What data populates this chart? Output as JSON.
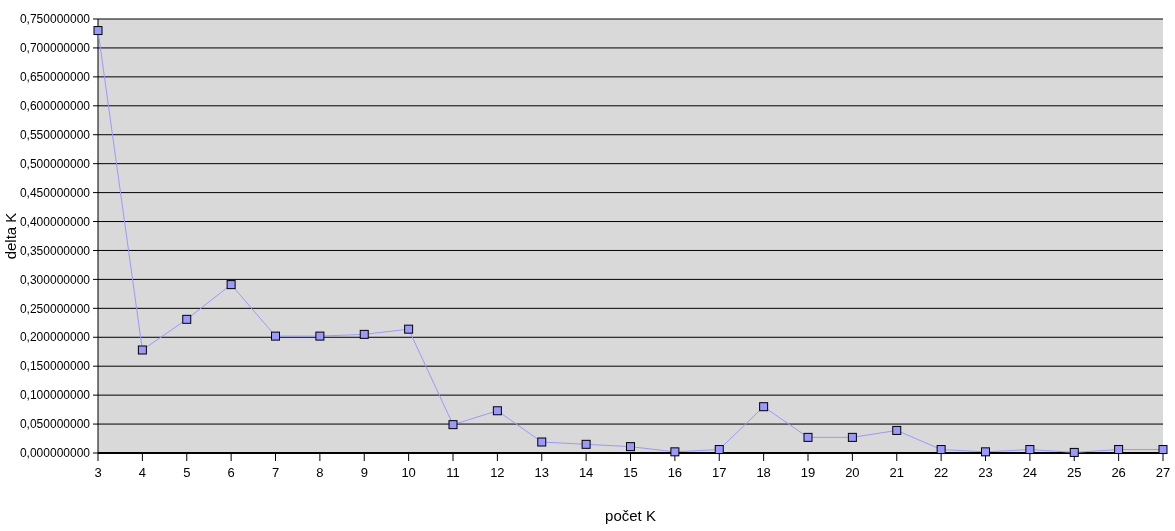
{
  "chart_data": {
    "type": "line",
    "xlabel": "počet K",
    "ylabel": "delta K",
    "categories": [
      "3",
      "4",
      "5",
      "6",
      "7",
      "8",
      "9",
      "10",
      "11",
      "12",
      "13",
      "14",
      "15",
      "16",
      "17",
      "18",
      "19",
      "20",
      "21",
      "22",
      "23",
      "24",
      "25",
      "26",
      "27"
    ],
    "series": [
      {
        "color": "#9999ff",
        "values": [
          0.73,
          0.178,
          0.231,
          0.291,
          0.202,
          0.202,
          0.205,
          0.214,
          0.049,
          0.073,
          0.019,
          0.015,
          0.011,
          0.002,
          0.006,
          0.08,
          0.027,
          0.027,
          0.039,
          0.006,
          0.002,
          0.006,
          0.001,
          0.006,
          0.006
        ]
      }
    ],
    "ylim": [
      0,
      0.75
    ],
    "yticks": [
      {
        "value": 0,
        "label": "0,000000000"
      },
      {
        "value": 0.05,
        "label": "0,050000000"
      },
      {
        "value": 0.1,
        "label": "0,100000000"
      },
      {
        "value": 0.15,
        "label": "0,150000000"
      },
      {
        "value": 0.2,
        "label": "0,200000000"
      },
      {
        "value": 0.25,
        "label": "0,250000000"
      },
      {
        "value": 0.3,
        "label": "0,300000000"
      },
      {
        "value": 0.35,
        "label": "0,350000000"
      },
      {
        "value": 0.4,
        "label": "0,400000000"
      },
      {
        "value": 0.45,
        "label": "0,450000000"
      },
      {
        "value": 0.5,
        "label": "0,500000000"
      },
      {
        "value": 0.55,
        "label": "0,550000000"
      },
      {
        "value": 0.6,
        "label": "0,600000000"
      },
      {
        "value": 0.65,
        "label": "0,650000000"
      },
      {
        "value": 0.7,
        "label": "0,700000000"
      },
      {
        "value": 0.75,
        "label": "0,750000000"
      }
    ],
    "grid": "y",
    "marker": "square",
    "line_style": "solid"
  }
}
